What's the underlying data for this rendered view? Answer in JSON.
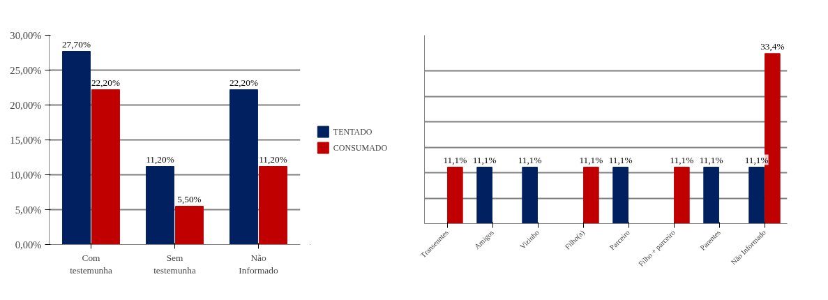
{
  "chart_data": [
    {
      "type": "bar",
      "categories": [
        "Com testemunha",
        "Sem testemunha",
        "Não Informado"
      ],
      "series": [
        {
          "name": "TENTADO",
          "color": "#002060",
          "values": [
            27.7,
            11.2,
            22.2
          ],
          "value_labels": [
            "27,70%",
            "11,20%",
            "22,20%"
          ]
        },
        {
          "name": "CONSUMADO",
          "color": "#c00000",
          "values": [
            22.2,
            5.5,
            11.2
          ],
          "value_labels": [
            "22,20%",
            "5,50%",
            "11,20%"
          ]
        }
      ],
      "ylim": [
        0,
        30
      ],
      "yticks": [
        {
          "value": 0,
          "label": "0,00%"
        },
        {
          "value": 5,
          "label": "5,00%"
        },
        {
          "value": 10,
          "label": "10,00%"
        },
        {
          "value": 15,
          "label": "15,00%"
        },
        {
          "value": 20,
          "label": "20,00%"
        },
        {
          "value": 25,
          "label": "25,00%"
        },
        {
          "value": 30,
          "label": "30,00%"
        }
      ],
      "grid": "y",
      "legend": "right"
    },
    {
      "type": "bar",
      "categories": [
        "Transeuntes",
        "Amigos",
        "Vizinho",
        "Filho(a)",
        "Parceiro",
        "Filho + parceiro",
        "Parentes",
        "Não Informado"
      ],
      "series": [
        {
          "color": "#002060",
          "values": [
            null,
            11.1,
            11.1,
            null,
            11.1,
            null,
            11.1,
            11.1
          ],
          "value_labels": [
            null,
            "11,1%",
            "11,1%",
            null,
            "11,1%",
            null,
            "11,1%",
            "11,1%"
          ]
        },
        {
          "color": "#c00000",
          "values": [
            11.1,
            null,
            null,
            11.1,
            null,
            11.1,
            null,
            33.4
          ],
          "value_labels": [
            "11,1%",
            null,
            null,
            "11,1%",
            null,
            "11,1%",
            null,
            "33,4%"
          ]
        }
      ],
      "ylim": [
        0,
        37
      ],
      "yticks": [
        {
          "value": 0,
          "label": null
        },
        {
          "value": 5,
          "label": null
        },
        {
          "value": 10,
          "label": null
        },
        {
          "value": 15,
          "label": null
        },
        {
          "value": 20,
          "label": null
        },
        {
          "value": 25,
          "label": null
        },
        {
          "value": 30,
          "label": null
        }
      ],
      "grid": "y",
      "tick_labels": "x",
      "legend": false
    }
  ]
}
